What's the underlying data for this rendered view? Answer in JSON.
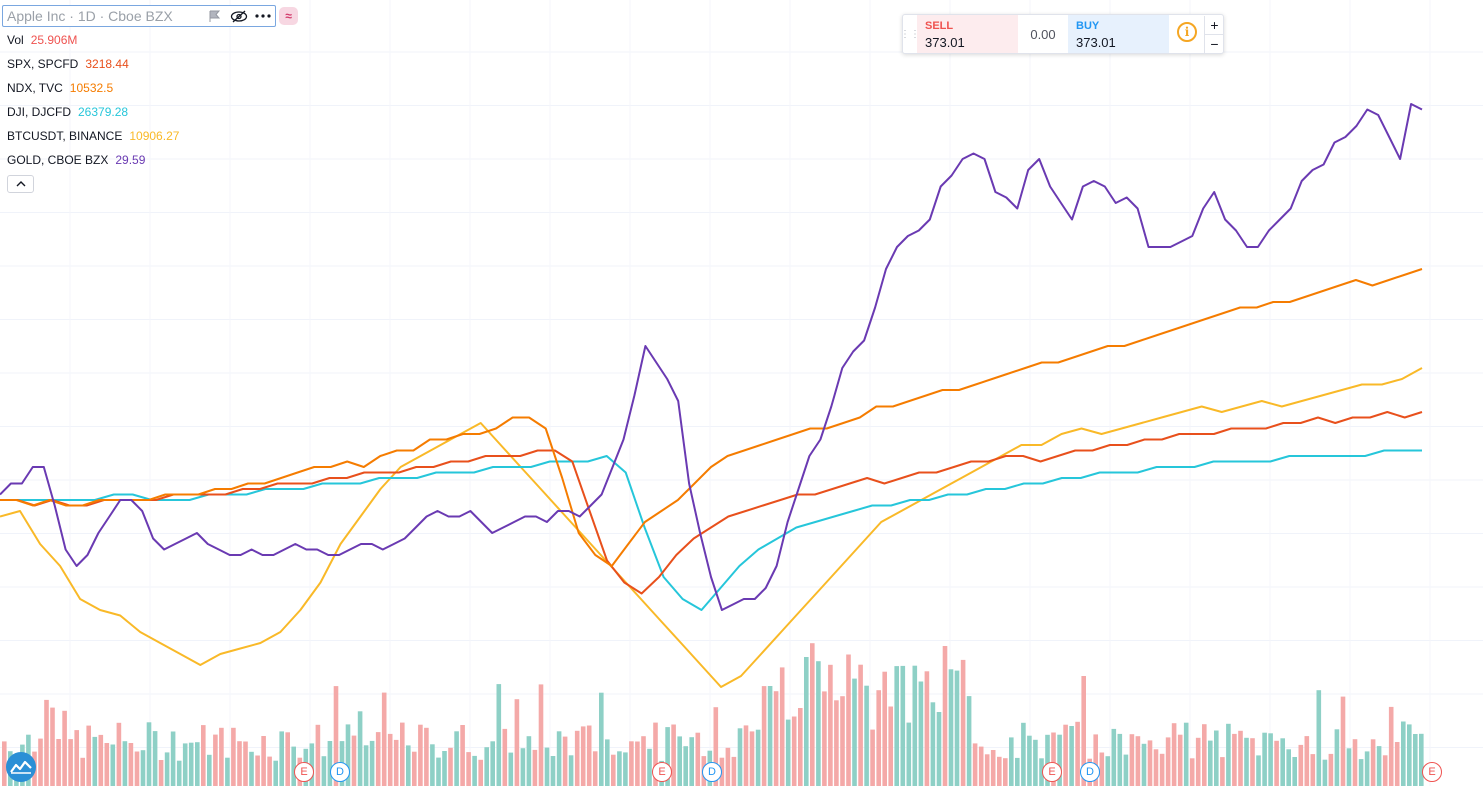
{
  "header": {
    "symbol_title": "Apple Inc · 1D · Cboe BZX",
    "icons": [
      "flag-icon",
      "eye-slash-icon",
      "more-icon"
    ],
    "compare_icon": "≈"
  },
  "legend": [
    {
      "name": "Vol",
      "value": "25.906M",
      "color": "#ef5350"
    },
    {
      "name": "SPX, SPCFD",
      "value": "3218.44",
      "color": "#e8501c"
    },
    {
      "name": "NDX, TVC",
      "value": "10532.5",
      "color": "#f57c00"
    },
    {
      "name": "DJI, DJCFD",
      "value": "26379.28",
      "color": "#26c6da"
    },
    {
      "name": "BTCUSDT, BINANCE",
      "value": "10906.27",
      "color": "#f9b928"
    },
    {
      "name": "GOLD, CBOE BZX",
      "value": "29.59",
      "color": "#6a3ab2"
    }
  ],
  "collapse_icon": "chevron-up-icon",
  "trade_panel": {
    "sell_label": "SELL",
    "sell_price": "373.01",
    "spread": "0.00",
    "buy_label": "BUY",
    "buy_price": "373.01",
    "info_icon": "i",
    "plus": "+",
    "minus": "−"
  },
  "event_markers": [
    "E",
    "D",
    "E",
    "D",
    "E",
    "D",
    "E"
  ],
  "chart_data": {
    "type": "line",
    "title": "",
    "xlabel": "",
    "ylabel": "",
    "grid": true,
    "y_scale": "percent change (relative)",
    "series": [
      {
        "name": "GOLD, CBOE BZX",
        "color": "#6a3ab2",
        "values": [
          1,
          3,
          3,
          6,
          6,
          -1,
          -9,
          -12,
          -10,
          -6,
          -3,
          0,
          0,
          -2,
          -7,
          -9,
          -8,
          -7,
          -6,
          -8,
          -9,
          -10,
          -10,
          -9,
          -10,
          -10,
          -9,
          -8,
          -9,
          -9,
          -10,
          -10,
          -9,
          -8,
          -8,
          -9,
          -8,
          -7,
          -5,
          -3,
          -2,
          -3,
          -3,
          -2,
          -4,
          -6,
          -5,
          -4,
          -3,
          -3,
          -4,
          -2,
          -2,
          -3,
          -1,
          1,
          6,
          11,
          19,
          28,
          25,
          22,
          18,
          3,
          -6,
          -14,
          -20,
          -19,
          -18,
          -18,
          -16,
          -12,
          -4,
          2,
          8,
          11,
          17,
          24,
          27,
          29,
          35,
          42,
          46,
          48,
          49,
          51,
          57,
          59,
          62,
          63,
          62,
          56,
          55,
          53,
          60,
          62,
          57,
          54,
          51,
          57,
          58,
          57,
          54,
          55,
          53,
          46,
          46,
          46,
          47,
          48,
          53,
          56,
          51,
          49,
          46,
          46,
          49,
          51,
          53,
          58,
          60,
          61,
          65,
          66,
          68,
          71,
          70,
          66,
          62,
          72,
          71
        ]
      },
      {
        "name": "NDX, TVC",
        "color": "#f57c00",
        "values": [
          0,
          0,
          -1,
          0,
          -1,
          -1,
          0,
          0,
          0,
          0,
          1,
          1,
          1,
          2,
          2,
          3,
          3,
          4,
          5,
          6,
          6,
          7,
          6,
          8,
          9,
          9,
          11,
          11,
          12,
          12,
          13,
          15,
          15,
          13,
          4,
          -6,
          -10,
          -12,
          -8,
          -4,
          -2,
          0,
          3,
          6,
          8,
          9,
          10,
          11,
          12,
          13,
          13,
          14,
          15,
          17,
          17,
          18,
          19,
          20,
          20,
          21,
          22,
          23,
          24,
          25,
          25,
          26,
          27,
          28,
          28,
          29,
          30,
          31,
          32,
          33,
          34,
          35,
          35,
          36,
          36,
          37,
          38,
          39,
          40,
          39,
          40,
          41,
          42
        ]
      },
      {
        "name": "SPX, SPCFD",
        "color": "#e8501c",
        "values": [
          0,
          0,
          -1,
          0,
          -1,
          -1,
          0,
          0,
          0,
          0,
          1,
          1,
          1,
          1,
          2,
          2,
          3,
          3,
          3,
          4,
          4,
          5,
          5,
          5,
          6,
          6,
          7,
          7,
          8,
          8,
          8,
          9,
          9,
          7,
          -2,
          -11,
          -15,
          -17,
          -14,
          -10,
          -7,
          -5,
          -3,
          -2,
          -1,
          0,
          1,
          1,
          2,
          3,
          4,
          3,
          4,
          5,
          5,
          6,
          7,
          7,
          8,
          8,
          7,
          8,
          9,
          9,
          10,
          10,
          11,
          11,
          12,
          12,
          12,
          13,
          13,
          13,
          14,
          14,
          15,
          14,
          15,
          15,
          16,
          15,
          16
        ]
      },
      {
        "name": "DJI, DJCFD",
        "color": "#26c6da",
        "values": [
          0,
          0,
          0,
          0,
          0,
          0,
          1,
          1,
          0,
          0,
          0,
          1,
          1,
          1,
          2,
          2,
          2,
          3,
          3,
          3,
          4,
          4,
          4,
          5,
          5,
          5,
          6,
          6,
          6,
          7,
          7,
          7,
          8,
          5,
          -5,
          -14,
          -18,
          -20,
          -16,
          -12,
          -9,
          -7,
          -5,
          -4,
          -3,
          -2,
          -1,
          -1,
          0,
          0,
          1,
          1,
          2,
          2,
          3,
          3,
          4,
          4,
          5,
          5,
          5,
          6,
          6,
          6,
          7,
          7,
          7,
          7,
          8,
          8,
          8,
          8,
          8,
          9,
          9,
          9
        ]
      },
      {
        "name": "BTCUSDT, BINANCE",
        "color": "#f9b928",
        "values": [
          -3,
          -2,
          -8,
          -12,
          -18,
          -20,
          -21,
          -24,
          -26,
          -28,
          -30,
          -28,
          -27,
          -26,
          -24,
          -20,
          -15,
          -8,
          -3,
          2,
          6,
          8,
          10,
          12,
          14,
          10,
          6,
          2,
          -2,
          -6,
          -10,
          -14,
          -18,
          -22,
          -26,
          -30,
          -34,
          -32,
          -28,
          -24,
          -20,
          -16,
          -12,
          -8,
          -4,
          -2,
          0,
          2,
          4,
          6,
          8,
          10,
          10,
          12,
          13,
          12,
          13,
          14,
          15,
          16,
          17,
          16,
          17,
          18,
          17,
          18,
          19,
          20,
          21,
          21,
          22,
          24
        ]
      }
    ]
  }
}
